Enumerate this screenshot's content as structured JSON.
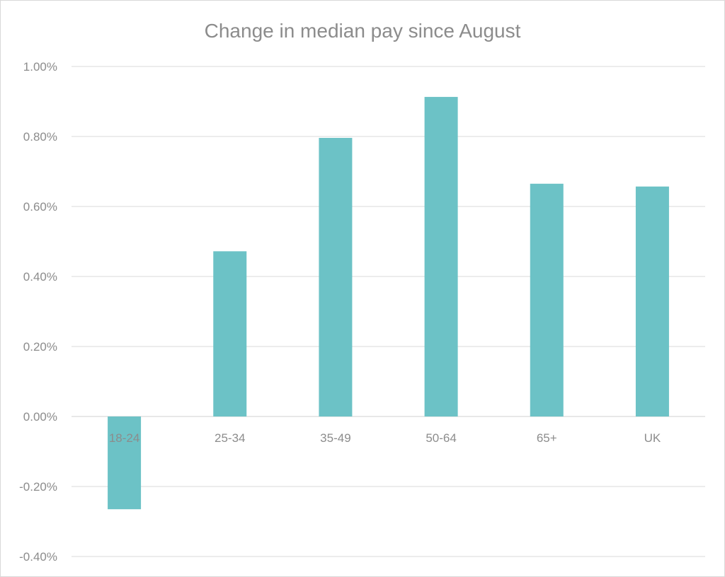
{
  "chart_data": {
    "type": "bar",
    "title": "Change in median pay since August",
    "xlabel": "",
    "ylabel": "",
    "categories": [
      "18-24",
      "25-34",
      "35-49",
      "50-64",
      "65+",
      "UK"
    ],
    "values": [
      -0.265,
      0.472,
      0.796,
      0.913,
      0.665,
      0.657
    ],
    "value_unit": "%",
    "ylim": [
      -0.4,
      1.0
    ],
    "yticks": [
      "1.00%",
      "0.80%",
      "0.60%",
      "0.40%",
      "0.20%",
      "0.00%",
      "-0.20%",
      "-0.40%"
    ],
    "ytick_values": [
      1.0,
      0.8,
      0.6,
      0.4,
      0.2,
      0.0,
      -0.2,
      -0.4
    ],
    "grid": true,
    "legend": "none",
    "bar_color": "#6cc2c6"
  }
}
